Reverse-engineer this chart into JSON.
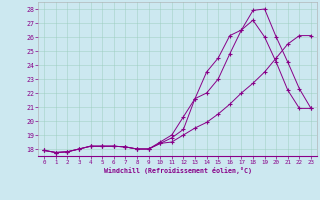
{
  "xlabel": "Windchill (Refroidissement éolien,°C)",
  "bg_color": "#cce8f0",
  "line_color": "#880088",
  "xlim": [
    -0.5,
    23.5
  ],
  "ylim": [
    17.5,
    28.5
  ],
  "yticks": [
    18,
    19,
    20,
    21,
    22,
    23,
    24,
    25,
    26,
    27,
    28
  ],
  "xticks": [
    0,
    1,
    2,
    3,
    4,
    5,
    6,
    7,
    8,
    9,
    10,
    11,
    12,
    13,
    14,
    15,
    16,
    17,
    18,
    19,
    20,
    21,
    22,
    23
  ],
  "series1_x": [
    0,
    1,
    2,
    3,
    4,
    5,
    6,
    7,
    8,
    9,
    10,
    11,
    12,
    13,
    14,
    15,
    16,
    17,
    18,
    19,
    20,
    21,
    22,
    23
  ],
  "series1_y": [
    17.9,
    17.75,
    17.8,
    18.0,
    18.2,
    18.2,
    18.2,
    18.15,
    18.0,
    18.0,
    18.5,
    19.0,
    20.3,
    21.6,
    22.0,
    23.0,
    24.8,
    26.5,
    27.2,
    26.0,
    24.2,
    22.2,
    20.9,
    20.9
  ],
  "series2_x": [
    0,
    1,
    2,
    3,
    4,
    5,
    6,
    7,
    8,
    9,
    10,
    11,
    12,
    13,
    14,
    15,
    16,
    17,
    18,
    19,
    20,
    21,
    22,
    23
  ],
  "series2_y": [
    17.9,
    17.75,
    17.8,
    18.0,
    18.2,
    18.2,
    18.2,
    18.15,
    18.0,
    18.0,
    18.4,
    18.5,
    19.0,
    19.5,
    19.9,
    20.5,
    21.2,
    22.0,
    22.7,
    23.5,
    24.5,
    25.5,
    26.1,
    26.1
  ],
  "series3_x": [
    0,
    1,
    2,
    3,
    4,
    5,
    6,
    7,
    8,
    9,
    10,
    11,
    12,
    13,
    14,
    15,
    16,
    17,
    18,
    19,
    20,
    21,
    22,
    23
  ],
  "series3_y": [
    17.9,
    17.75,
    17.8,
    18.0,
    18.2,
    18.2,
    18.2,
    18.15,
    18.0,
    18.0,
    18.4,
    18.8,
    19.4,
    21.6,
    23.5,
    24.5,
    26.1,
    26.5,
    27.9,
    28.0,
    26.0,
    24.2,
    22.3,
    20.9
  ]
}
